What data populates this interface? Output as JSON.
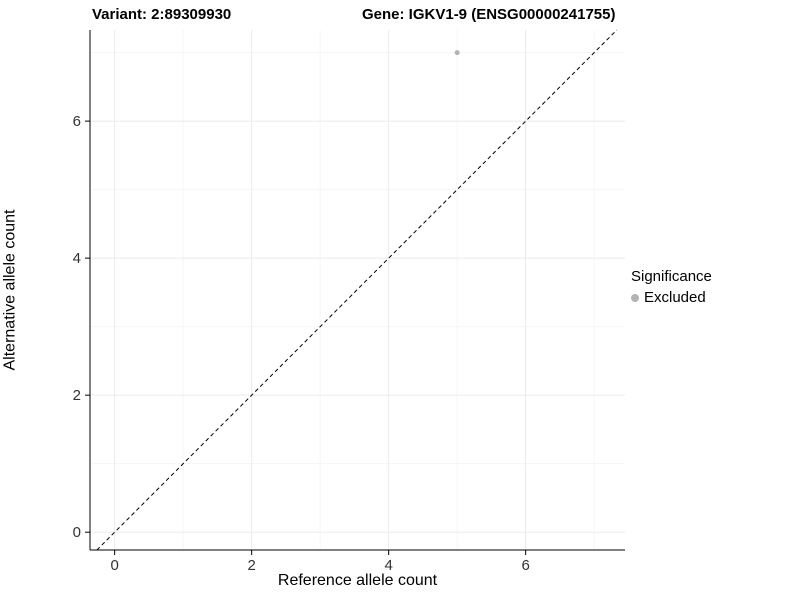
{
  "titles": {
    "variant": "Variant: 2:89309930",
    "gene": "Gene: IGKV1-9 (ENSG00000241755)"
  },
  "chart_data": {
    "type": "scatter",
    "title_left": "Variant: 2:89309930",
    "title_right": "Gene: IGKV1-9 (ENSG00000241755)",
    "xlabel": "Reference allele count",
    "ylabel": "Alternative allele count",
    "xlim": [
      -0.36,
      7.45
    ],
    "ylim": [
      -0.26,
      7.33
    ],
    "xticks": [
      0,
      2,
      4,
      6
    ],
    "yticks": [
      0,
      2,
      4,
      6
    ],
    "minor_xticks": [
      1,
      3,
      5,
      7
    ],
    "minor_yticks": [
      1,
      3,
      5,
      7
    ],
    "grid": true,
    "series": [
      {
        "name": "Excluded",
        "color": "#b3b3b3",
        "points": [
          {
            "x": 5,
            "y": 7
          }
        ]
      }
    ],
    "reference_line": {
      "type": "identity",
      "style": "dashed",
      "color": "#000000"
    },
    "legend": {
      "title": "Significance",
      "position": "right",
      "entries": [
        {
          "label": "Excluded",
          "color": "#b3b3b3"
        }
      ]
    }
  },
  "colors": {
    "background": "#ffffff",
    "axis": "#000000",
    "tick_label": "#333333",
    "grid_major": "#ebebeb",
    "grid_minor": "#f6f6f6",
    "point": "#b3b3b3"
  }
}
